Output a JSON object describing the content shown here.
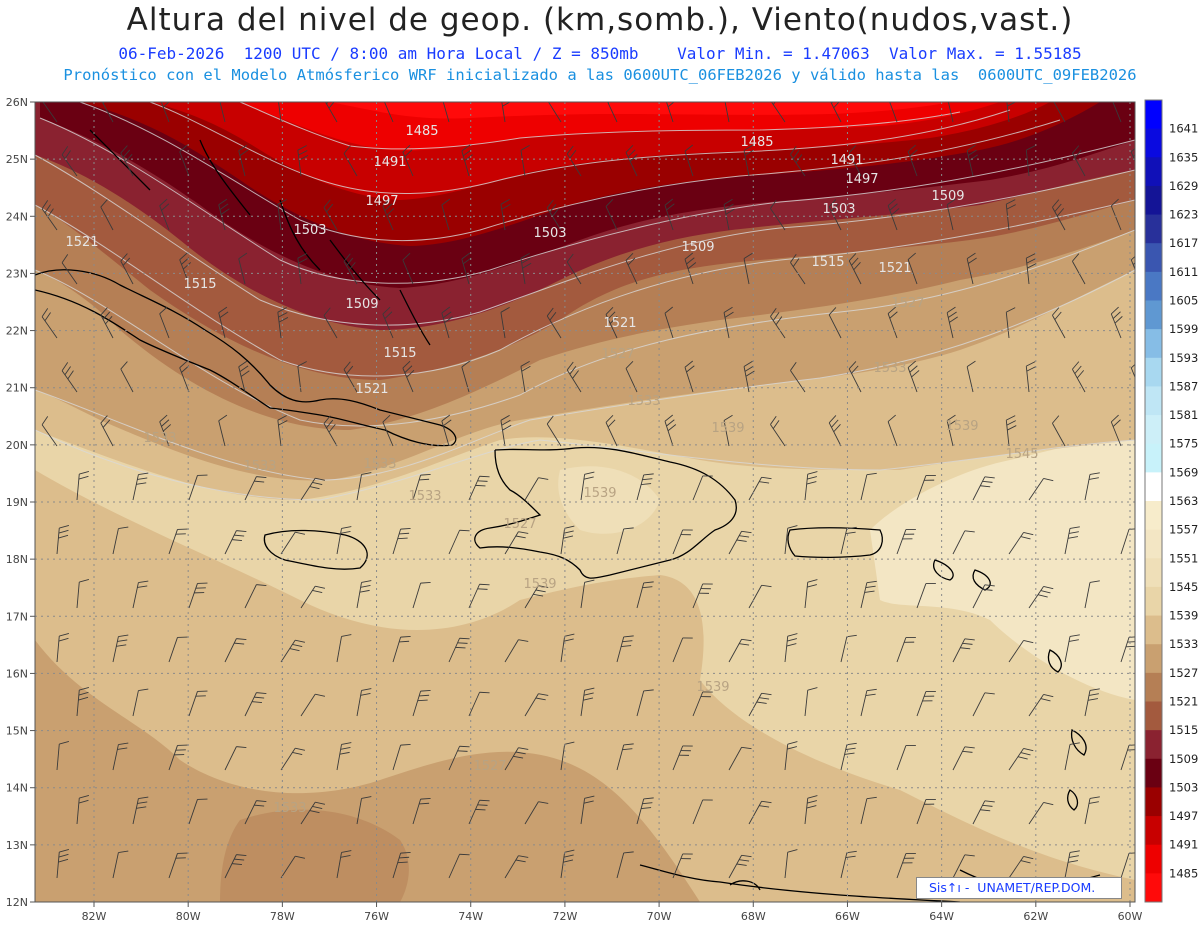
{
  "header": {
    "title": "Altura del nivel de geop. (km,somb.), Viento(nudos,vast.)",
    "subtitle_line1": "06-Feb-2026  1200 UTC / 8:00 am Hora Local / Z = 850mb    Valor Min. = 1.47063  Valor Max. = 1.55185",
    "subtitle_line2": "Pronóstico con el Modelo Atmósferico WRF inicializado a las 0600UTC_06FEB2026 y válido hasta las  0600UTC_09FEB2026"
  },
  "map": {
    "lat_labels": [
      "26N",
      "25N",
      "24N",
      "23N",
      "22N",
      "21N",
      "20N",
      "19N",
      "18N",
      "17N",
      "16N",
      "15N",
      "14N",
      "13N",
      "12N"
    ],
    "lon_labels": [
      "82W",
      "80W",
      "78W",
      "76W",
      "74W",
      "72W",
      "70W",
      "68W",
      "66W",
      "64W",
      "62W",
      "60W"
    ],
    "contour_labels": [
      {
        "text": "1485",
        "tone": "light"
      },
      {
        "text": "1485",
        "tone": "light"
      },
      {
        "text": "1491",
        "tone": "light"
      },
      {
        "text": "1491",
        "tone": "light"
      },
      {
        "text": "1497",
        "tone": "light"
      },
      {
        "text": "1497",
        "tone": "light"
      },
      {
        "text": "1503",
        "tone": "light"
      },
      {
        "text": "1503",
        "tone": "light"
      },
      {
        "text": "1503",
        "tone": "light"
      },
      {
        "text": "1509",
        "tone": "light"
      },
      {
        "text": "1509",
        "tone": "light"
      },
      {
        "text": "1509",
        "tone": "light"
      },
      {
        "text": "1515",
        "tone": "light"
      },
      {
        "text": "1515",
        "tone": "light"
      },
      {
        "text": "1515",
        "tone": "light"
      },
      {
        "text": "1521",
        "tone": "light"
      },
      {
        "text": "1521",
        "tone": "light"
      },
      {
        "text": "1521",
        "tone": "light"
      },
      {
        "text": "1521",
        "tone": "light"
      },
      {
        "text": "1527",
        "tone": "dark"
      },
      {
        "text": "1527",
        "tone": "dark"
      },
      {
        "text": "1527",
        "tone": "dark"
      },
      {
        "text": "1533",
        "tone": "dark"
      },
      {
        "text": "1533",
        "tone": "dark"
      },
      {
        "text": "1533",
        "tone": "dark"
      },
      {
        "text": "1533",
        "tone": "dark"
      },
      {
        "text": "1533",
        "tone": "dark"
      },
      {
        "text": "1533",
        "tone": "dark"
      },
      {
        "text": "1539",
        "tone": "dark"
      },
      {
        "text": "1539",
        "tone": "dark"
      },
      {
        "text": "1539",
        "tone": "dark"
      },
      {
        "text": "1539",
        "tone": "dark"
      },
      {
        "text": "1539",
        "tone": "dark"
      },
      {
        "text": "1527",
        "tone": "dark"
      },
      {
        "text": "1545",
        "tone": "dark"
      },
      {
        "text": "1533",
        "tone": "dark"
      }
    ]
  },
  "colorbar": {
    "levels": [
      {
        "label": "1641",
        "color": "#0000ff"
      },
      {
        "label": "1635",
        "color": "#0a0ae0"
      },
      {
        "label": "1629",
        "color": "#1010b8"
      },
      {
        "label": "1623",
        "color": "#141496"
      },
      {
        "label": "1617",
        "color": "#28309a"
      },
      {
        "label": "1611",
        "color": "#3a56b0"
      },
      {
        "label": "1605",
        "color": "#4a78c4"
      },
      {
        "label": "1599",
        "color": "#5f98d2"
      },
      {
        "label": "1593",
        "color": "#86bde6"
      },
      {
        "label": "1587",
        "color": "#a8d8f0"
      },
      {
        "label": "1581",
        "color": "#bfe6f5"
      },
      {
        "label": "1575",
        "color": "#cdeff8"
      },
      {
        "label": "1569",
        "color": "#c8f2fa"
      },
      {
        "label": "1563",
        "color": "#ffffff"
      },
      {
        "label": "1557",
        "color": "#f7eccb"
      },
      {
        "label": "1551",
        "color": "#f3e6c4"
      },
      {
        "label": "1545",
        "color": "#efdfb8"
      },
      {
        "label": "1539",
        "color": "#e9d5a8"
      },
      {
        "label": "1533",
        "color": "#dcbd8c"
      },
      {
        "label": "1527",
        "color": "#c9a070"
      },
      {
        "label": "1521",
        "color": "#b57f55"
      },
      {
        "label": "1515",
        "color": "#a35a3e"
      },
      {
        "label": "1509",
        "color": "#8a2230"
      },
      {
        "label": "1503",
        "color": "#6a0012"
      },
      {
        "label": "1497",
        "color": "#9a0000"
      },
      {
        "label": "1491",
        "color": "#c80000"
      },
      {
        "label": "1485",
        "color": "#ee0000"
      },
      {
        "label": "",
        "color": "#ff0a0a"
      }
    ]
  },
  "credit": {
    "text": "Sis↑ı -  UNAMET/REP.DOM."
  }
}
